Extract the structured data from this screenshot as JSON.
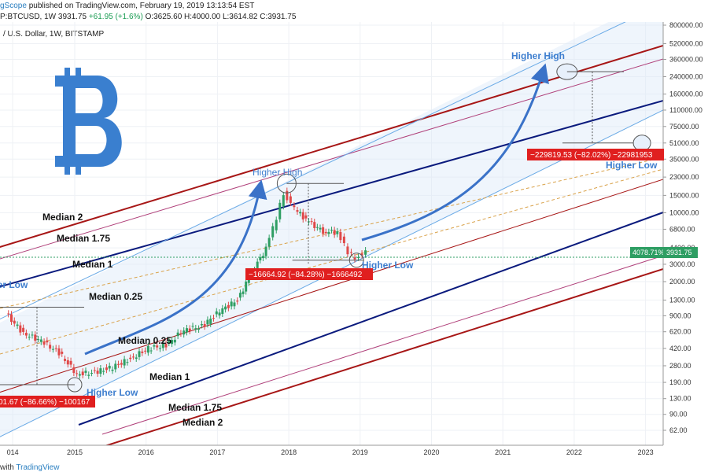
{
  "header": {
    "publisher": "gScope",
    "published_text": " published on TradingView.com, February 19, 2019 13:13:54 EST",
    "symbol": "P:BTCUSD, 1W",
    "last": "3931.75",
    "change": "+61.95 (+1.6%)",
    "ohlc": "O:3625.60 H:4000.00 L:3614.82 C:3931.75",
    "subtitle": "/ U.S. Dollar, 1W, BITSTAMP"
  },
  "footer": {
    "prefix": "with",
    "brand": "TradingView"
  },
  "price_tags": {
    "pct": "4078.71%",
    "last": "3931.75"
  },
  "colors": {
    "candle_up": "#2e9e63",
    "candle_down": "#e04848",
    "median_outer": "#a71616",
    "median_175": "#b0407a",
    "median_1": "#0a1a7d",
    "channel": "#6aaae6",
    "dashed": "#d9a24a",
    "bitcoin": "#3a7fcf",
    "arrow": "#3a72c8",
    "annot": "#3f7fcf",
    "box": "#e01f1f"
  },
  "icon": "bitcoin-logo-icon",
  "annotations": {
    "higher_high_1": "Higher High",
    "higher_high_2": "Higher High",
    "higher_low_1": "Higher Low",
    "higher_low_2": "Higher Low",
    "higher_low_3": "Higher Low",
    "median2_top": "Median 2",
    "median175_top": "Median 1.75",
    "median1_top": "Median 1",
    "median025_top": "Median 0.25",
    "median025_bot": "Median 0.25",
    "median1_bot": "Median 1",
    "median175_bot": "Median 1.75",
    "median2_bot": "Median 2"
  },
  "measure_boxes": {
    "left": "01.67 (−86.66%) −100167",
    "mid": "−16664.92 (−84.28%) −1666492",
    "right": "−229819.53 (−82.02%) −22981953"
  },
  "chart_data": {
    "type": "candlestick",
    "scale": "log",
    "x_ticks": [
      "014",
      "2015",
      "2016",
      "2017",
      "2018",
      "2019",
      "2020",
      "2021",
      "2022",
      "2023"
    ],
    "y_ticks": [
      "800000.00",
      "520000.00",
      "360000.00",
      "240000.00",
      "160000.00",
      "110000.00",
      "75000.00",
      "51000.00",
      "35000.00",
      "23000.00",
      "15000.00",
      "10000.00",
      "6800.00",
      "4400.00",
      "3000.00",
      "2000.00",
      "1300.00",
      "900.00",
      "620.00",
      "420.00",
      "280.00",
      "190.00",
      "130.00",
      "90.00",
      "62.00"
    ],
    "x": [
      2014.05,
      2014.3,
      2014.55,
      2014.8,
      2015.05,
      2015.3,
      2015.55,
      2015.8,
      2016.05,
      2016.3,
      2016.55,
      2016.8,
      2017.05,
      2017.3,
      2017.5,
      2017.7,
      2017.85,
      2017.95,
      2018.1,
      2018.3,
      2018.5,
      2018.7,
      2018.85,
      2018.95,
      2019.1
    ],
    "close": [
      950,
      600,
      500,
      380,
      230,
      240,
      270,
      330,
      420,
      450,
      650,
      700,
      1000,
      1300,
      2500,
      4300,
      9000,
      16000,
      11000,
      8000,
      6500,
      6300,
      4000,
      3500,
      3931.75
    ],
    "notes": {
      "peak_2017": 19800,
      "projected_peak": 270000,
      "projected_low": 51000
    },
    "pitchfork_lines": [
      "Median 2",
      "Median 1.75",
      "Median 1",
      "Median 0.25",
      "Median 0.25",
      "Median 1",
      "Median 1.75",
      "Median 2"
    ]
  }
}
